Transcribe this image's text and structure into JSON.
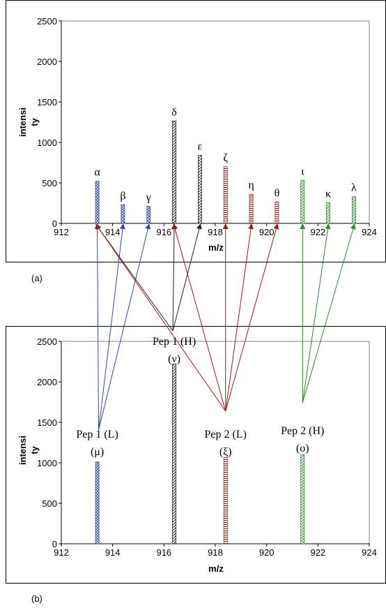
{
  "colors": {
    "blue": "#3344aa",
    "black": "#222222",
    "red": "#a01818",
    "green": "#2a8a2a",
    "gridline": "#808080",
    "border": "#000000"
  },
  "chart_data": [
    {
      "type": "bar",
      "panel_label": "(a)",
      "xlabel": "m/z",
      "ylabel_line1": "intensi",
      "ylabel_line2": "ty",
      "xlim": [
        912,
        924
      ],
      "ylim": [
        0,
        2500
      ],
      "xticks": [
        912,
        914,
        916,
        918,
        920,
        922,
        924
      ],
      "yticks": [
        0,
        500,
        1000,
        1500,
        2000,
        2500
      ],
      "grid": false,
      "bars": [
        {
          "x": 913.4,
          "y": 520,
          "color": "blue",
          "label": "α"
        },
        {
          "x": 914.4,
          "y": 230,
          "color": "blue",
          "label": "β"
        },
        {
          "x": 915.4,
          "y": 210,
          "color": "blue",
          "label": "γ"
        },
        {
          "x": 916.4,
          "y": 1265,
          "color": "black",
          "label": "δ"
        },
        {
          "x": 917.4,
          "y": 840,
          "color": "black",
          "label": "ε"
        },
        {
          "x": 918.4,
          "y": 700,
          "color": "red",
          "label": "ζ"
        },
        {
          "x": 919.4,
          "y": 360,
          "color": "red",
          "label": "η"
        },
        {
          "x": 920.4,
          "y": 265,
          "color": "red",
          "label": "θ"
        },
        {
          "x": 921.4,
          "y": 530,
          "color": "green",
          "label": "ι"
        },
        {
          "x": 922.4,
          "y": 255,
          "color": "green",
          "label": "κ"
        },
        {
          "x": 923.4,
          "y": 330,
          "color": "green",
          "label": "λ"
        }
      ]
    },
    {
      "type": "bar",
      "panel_label": "(b)",
      "xlabel": "m/z",
      "ylabel_line1": "intensi",
      "ylabel_line2": "ty",
      "xlim": [
        912,
        924
      ],
      "ylim": [
        0,
        2500
      ],
      "xticks": [
        912,
        914,
        916,
        918,
        920,
        922,
        924
      ],
      "yticks": [
        0,
        500,
        1000,
        1500,
        2000,
        2500
      ],
      "grid": false,
      "bars": [
        {
          "x": 913.4,
          "y": 1010,
          "color": "blue",
          "label_line1": "Pep 1 (L)",
          "label_line2": "(μ)"
        },
        {
          "x": 916.4,
          "y": 2220,
          "color": "black",
          "label_line1": "Pep 1 (H)",
          "label_line2": "(ν)"
        },
        {
          "x": 918.4,
          "y": 1065,
          "color": "red",
          "label_line1": "Pep 2 (L)",
          "label_line2": "(ξ)"
        },
        {
          "x": 921.4,
          "y": 1100,
          "color": "green",
          "label_line1": "Pep 2 (H)",
          "label_line2": "(ο)"
        }
      ]
    }
  ]
}
